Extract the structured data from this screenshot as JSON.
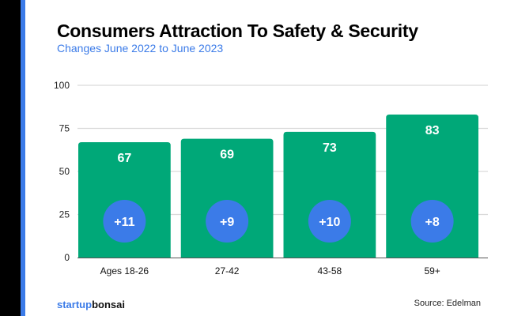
{
  "chart_data": {
    "type": "bar",
    "title": "Consumers Attraction To Safety & Security",
    "subtitle": "Changes June 2022 to June 2023",
    "categories": [
      "Ages 18-26",
      "27-42",
      "43-58",
      "59+"
    ],
    "values": [
      67,
      69,
      73,
      83
    ],
    "changes": [
      "+11",
      "+9",
      "+10",
      "+8"
    ],
    "ylim": [
      0,
      100
    ],
    "yticks": [
      0,
      25,
      50,
      75,
      100
    ],
    "grid": true,
    "colors": {
      "bar": "#00a878",
      "badge": "#3b7be8"
    }
  },
  "footer": {
    "brand_a": "startup",
    "brand_b": "bonsai",
    "source": "Source: Edelman"
  }
}
